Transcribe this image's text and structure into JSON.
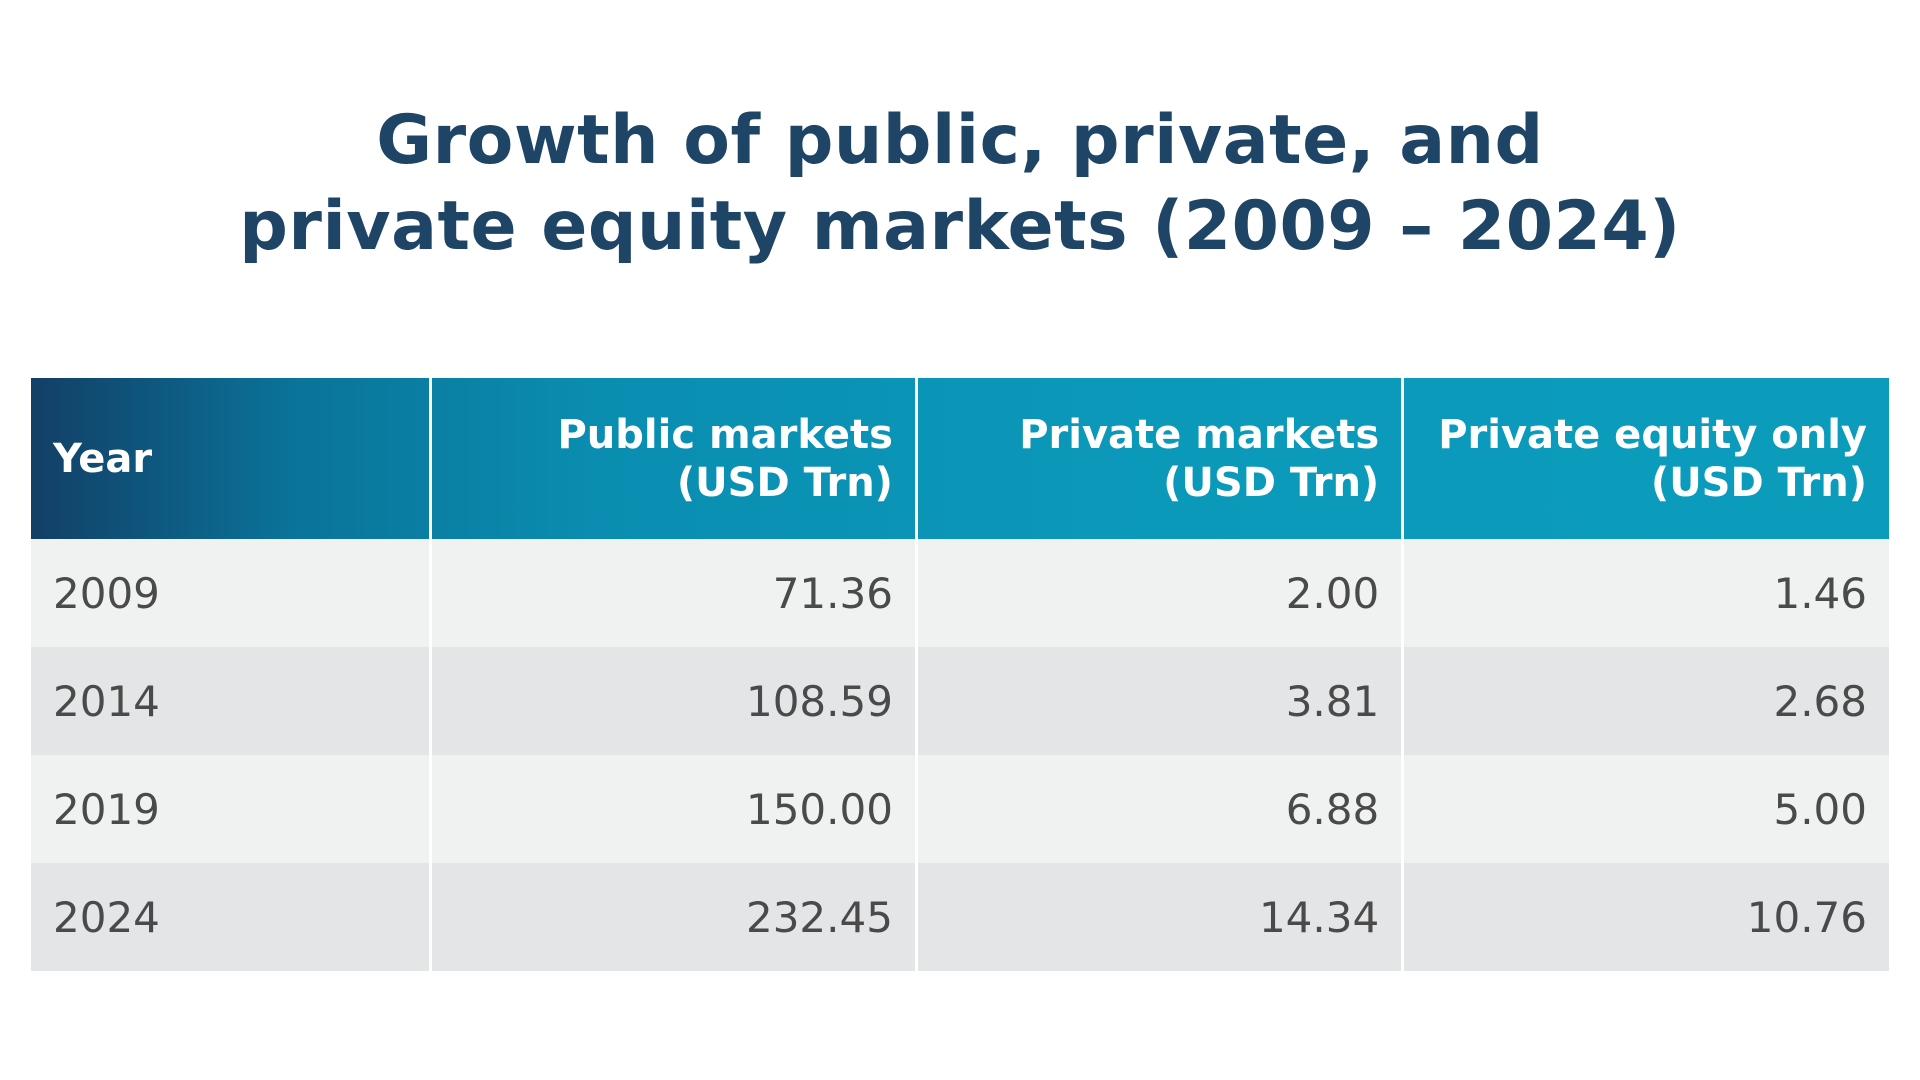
{
  "title": [
    "Growth of public, private, and",
    "private equity markets (2009 – 2024)"
  ],
  "table": {
    "header": [
      [
        "Year"
      ],
      [
        "Public markets",
        "(USD Trn)"
      ],
      [
        "Private markets",
        "(USD Trn)"
      ],
      [
        "Private equity only",
        "(USD Trn)"
      ]
    ],
    "rows": [
      [
        "2009",
        "71.36",
        "2.00",
        "1.46"
      ],
      [
        "2014",
        "108.59",
        "3.81",
        "2.68"
      ],
      [
        "2019",
        "150.00",
        "6.88",
        "5.00"
      ],
      [
        "2024",
        "232.45",
        "14.34",
        "10.76"
      ]
    ]
  }
}
